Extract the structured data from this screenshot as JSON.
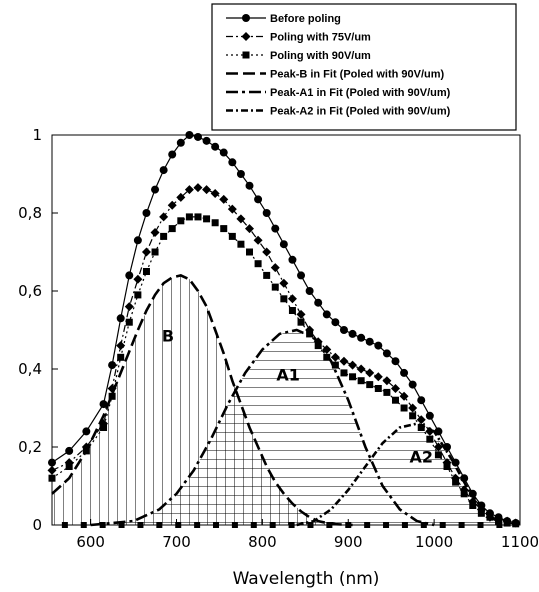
{
  "chart_data": {
    "type": "line",
    "title": "",
    "xlabel": "Wavelength  (nm)",
    "ylabel": "",
    "xlim": [
      555,
      1100
    ],
    "ylim": [
      0,
      1.0
    ],
    "x_ticks": [
      600,
      700,
      800,
      900,
      1000,
      1100
    ],
    "y_ticks": [
      0,
      0.2,
      0.4,
      0.6,
      0.8,
      1
    ],
    "x_tick_labels": [
      "600",
      "700",
      "800",
      "900",
      "1000",
      "1100"
    ],
    "y_tick_labels": [
      "0",
      "0,2",
      "0,4",
      "0,6",
      "0,8",
      "1"
    ],
    "legend_position": "top-right",
    "series": [
      {
        "name": "Before poling",
        "marker": "circle",
        "line": "solid",
        "x": [
          555,
          575,
          595,
          615,
          625,
          635,
          645,
          655,
          665,
          675,
          685,
          695,
          705,
          715,
          725,
          735,
          745,
          755,
          765,
          775,
          785,
          795,
          805,
          815,
          825,
          835,
          845,
          855,
          865,
          875,
          885,
          895,
          905,
          915,
          925,
          935,
          945,
          955,
          965,
          975,
          985,
          995,
          1005,
          1015,
          1025,
          1035,
          1045,
          1055,
          1065,
          1075,
          1085,
          1095
        ],
        "values": [
          0.16,
          0.19,
          0.24,
          0.31,
          0.41,
          0.53,
          0.64,
          0.73,
          0.8,
          0.86,
          0.91,
          0.95,
          0.98,
          1.0,
          0.995,
          0.985,
          0.97,
          0.955,
          0.93,
          0.9,
          0.87,
          0.835,
          0.8,
          0.76,
          0.72,
          0.68,
          0.64,
          0.6,
          0.57,
          0.54,
          0.52,
          0.5,
          0.49,
          0.48,
          0.47,
          0.46,
          0.44,
          0.42,
          0.39,
          0.36,
          0.32,
          0.28,
          0.24,
          0.2,
          0.16,
          0.12,
          0.08,
          0.05,
          0.03,
          0.02,
          0.01,
          0.005
        ]
      },
      {
        "name": "Poling with 75V/um",
        "marker": "diamond",
        "line": "dash-dot",
        "x": [
          555,
          575,
          595,
          615,
          625,
          635,
          645,
          655,
          665,
          675,
          685,
          695,
          705,
          715,
          725,
          735,
          745,
          755,
          765,
          775,
          785,
          795,
          805,
          815,
          825,
          835,
          845,
          855,
          865,
          875,
          885,
          895,
          905,
          915,
          925,
          935,
          945,
          955,
          965,
          975,
          985,
          995,
          1005,
          1015,
          1025,
          1035,
          1045,
          1055,
          1065,
          1075,
          1085,
          1095
        ],
        "values": [
          0.14,
          0.16,
          0.2,
          0.26,
          0.35,
          0.46,
          0.56,
          0.63,
          0.7,
          0.75,
          0.79,
          0.82,
          0.84,
          0.86,
          0.865,
          0.86,
          0.85,
          0.835,
          0.81,
          0.785,
          0.76,
          0.73,
          0.7,
          0.66,
          0.62,
          0.58,
          0.54,
          0.5,
          0.47,
          0.45,
          0.43,
          0.42,
          0.41,
          0.4,
          0.39,
          0.38,
          0.37,
          0.35,
          0.33,
          0.3,
          0.27,
          0.24,
          0.2,
          0.16,
          0.12,
          0.09,
          0.06,
          0.04,
          0.02,
          0.015,
          0.01,
          0.005
        ]
      },
      {
        "name": "Poling with 90V/um",
        "marker": "square",
        "line": "dotted",
        "x": [
          555,
          575,
          595,
          615,
          625,
          635,
          645,
          655,
          665,
          675,
          685,
          695,
          705,
          715,
          725,
          735,
          745,
          755,
          765,
          775,
          785,
          795,
          805,
          815,
          825,
          835,
          845,
          855,
          865,
          875,
          885,
          895,
          905,
          915,
          925,
          935,
          945,
          955,
          965,
          975,
          985,
          995,
          1005,
          1015,
          1025,
          1035,
          1045,
          1055,
          1065,
          1075,
          1085,
          1095
        ],
        "values": [
          0.12,
          0.15,
          0.19,
          0.25,
          0.33,
          0.43,
          0.52,
          0.59,
          0.65,
          0.7,
          0.74,
          0.76,
          0.78,
          0.79,
          0.79,
          0.785,
          0.775,
          0.76,
          0.74,
          0.72,
          0.7,
          0.67,
          0.64,
          0.61,
          0.58,
          0.55,
          0.52,
          0.49,
          0.46,
          0.43,
          0.41,
          0.39,
          0.38,
          0.37,
          0.36,
          0.35,
          0.34,
          0.32,
          0.3,
          0.28,
          0.25,
          0.22,
          0.18,
          0.15,
          0.11,
          0.08,
          0.05,
          0.03,
          0.02,
          0.01,
          0.005,
          0.003
        ]
      },
      {
        "name": "Peak-B in Fit (Poled with 90V/um)",
        "line": "long-dash",
        "x": [
          555,
          575,
          595,
          615,
          635,
          655,
          665,
          675,
          685,
          695,
          705,
          715,
          725,
          735,
          745,
          755,
          765,
          775,
          785,
          795,
          805,
          815,
          825,
          835,
          845,
          855,
          865,
          875,
          885,
          895,
          905
        ],
        "values": [
          0.08,
          0.12,
          0.19,
          0.28,
          0.39,
          0.5,
          0.55,
          0.59,
          0.62,
          0.635,
          0.64,
          0.63,
          0.6,
          0.56,
          0.5,
          0.44,
          0.37,
          0.31,
          0.25,
          0.2,
          0.15,
          0.11,
          0.08,
          0.055,
          0.035,
          0.02,
          0.01,
          0.005,
          0.002,
          0.001,
          0
        ]
      },
      {
        "name": "Peak-A1 in Fit (Poled with 90V/um)",
        "line": "long-dash-dot",
        "x": [
          600,
          650,
          680,
          700,
          720,
          740,
          760,
          780,
          800,
          820,
          840,
          860,
          880,
          900,
          920,
          940,
          960,
          980,
          1000
        ],
        "values": [
          0,
          0.01,
          0.04,
          0.08,
          0.14,
          0.22,
          0.31,
          0.39,
          0.45,
          0.49,
          0.5,
          0.48,
          0.42,
          0.32,
          0.2,
          0.1,
          0.04,
          0.01,
          0
        ]
      },
      {
        "name": "Peak-A2 in Fit (Poled with 90V/um)",
        "line": "dash-dot",
        "x": [
          840,
          860,
          880,
          900,
          920,
          940,
          960,
          980,
          1000,
          1020,
          1040,
          1060,
          1080
        ],
        "values": [
          0.0,
          0.01,
          0.04,
          0.09,
          0.15,
          0.21,
          0.25,
          0.26,
          0.24,
          0.17,
          0.09,
          0.03,
          0.0
        ]
      }
    ],
    "annotations": [
      {
        "text": "B",
        "x": 690,
        "y": 0.47
      },
      {
        "text": "A1",
        "x": 830,
        "y": 0.37
      },
      {
        "text": "A2",
        "x": 985,
        "y": 0.16
      }
    ]
  }
}
